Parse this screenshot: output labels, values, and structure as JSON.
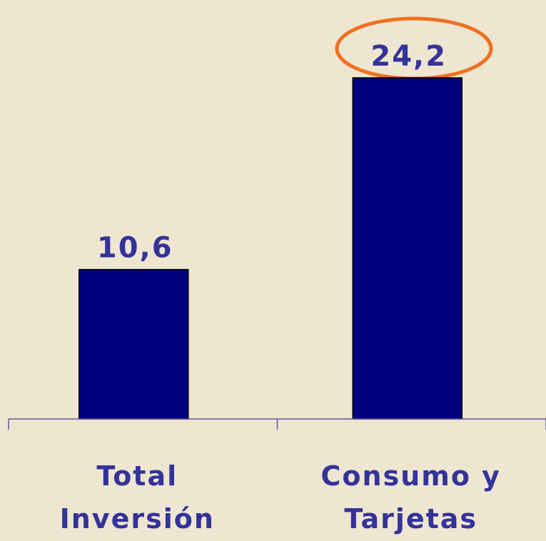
{
  "chart_data": {
    "type": "bar",
    "categories": [
      "Total Inversión",
      "Consumo y Tarjetas"
    ],
    "values": [
      10.6,
      24.2
    ],
    "value_labels": [
      "10,6",
      "24,2"
    ],
    "color": "#000080"
  }
}
